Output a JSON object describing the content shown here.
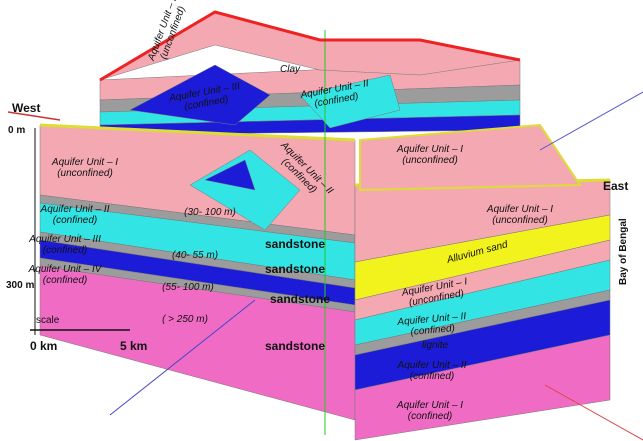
{
  "directions": {
    "west": "West",
    "east": "East",
    "bay": "Bay of Bengal"
  },
  "depth": {
    "top": "0 m",
    "bottom": "300 m"
  },
  "scale": {
    "title": "scale",
    "start": "0 km",
    "end": "5 km"
  },
  "labels": [
    {
      "lines": [
        "Aquifer Unit – I",
        "(unconfined)"
      ]
    },
    {
      "lines": [
        "Clay"
      ]
    },
    {
      "lines": [
        "Aquifer Unit – III",
        "(confined)"
      ]
    },
    {
      "lines": [
        "Aquifer Unit – II",
        "(confined)"
      ]
    },
    {
      "lines": [
        "Aquifer Unit – I",
        "(unconfined)"
      ]
    },
    {
      "lines": [
        "Aquifer Unit – I",
        "(unconfined)"
      ]
    },
    {
      "lines": [
        "Aquifer Unit – II",
        "(confined)"
      ]
    },
    {
      "lines": [
        "Aquifer Unit – III",
        "(confined)"
      ]
    },
    {
      "lines": [
        "Aquifer Unit – IV",
        "(confined)"
      ]
    },
    {
      "lines": [
        "(30- 100 m)"
      ]
    },
    {
      "lines": [
        "(40- 55 m)"
      ]
    },
    {
      "lines": [
        "(55- 100 m)"
      ]
    },
    {
      "lines": [
        "( > 250 m)"
      ]
    },
    {
      "lines": [
        "sandstone"
      ]
    },
    {
      "lines": [
        "sandstone"
      ]
    },
    {
      "lines": [
        "sandstone"
      ]
    },
    {
      "lines": [
        "sandstone"
      ]
    },
    {
      "lines": [
        "Aquifer Unit – II",
        "(confined)"
      ]
    },
    {
      "lines": [
        "Aquifer Unit – I",
        "(unconfined)"
      ]
    },
    {
      "lines": [
        "Alluvium sand"
      ]
    },
    {
      "lines": [
        "Aquifer Unit – I",
        "(unconfined)"
      ]
    },
    {
      "lines": [
        "Aquifer Unit – II",
        "(confined)"
      ]
    },
    {
      "lines": [
        "lignite"
      ]
    },
    {
      "lines": [
        "Aquifer Unit – II",
        "(confined)"
      ]
    },
    {
      "lines": [
        "Aquifer Unit – I",
        "(confined)"
      ]
    }
  ]
}
